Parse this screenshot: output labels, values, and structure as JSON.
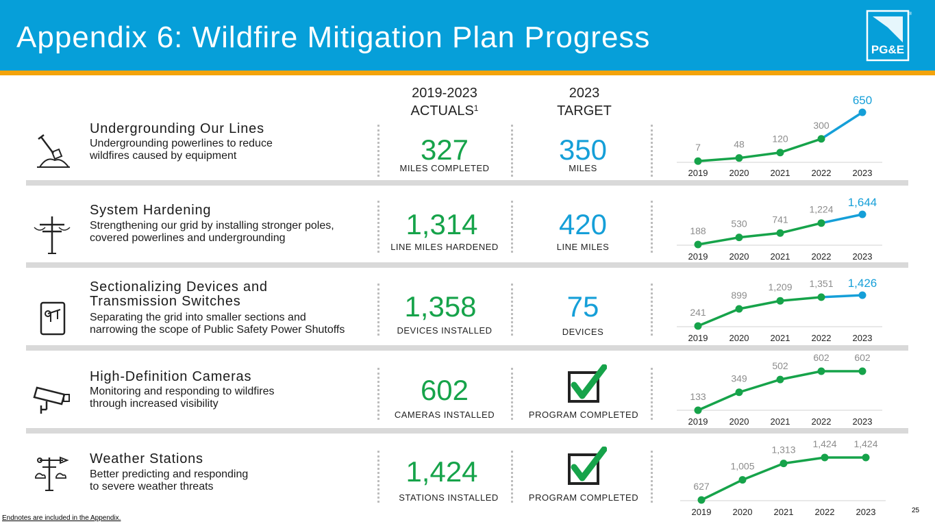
{
  "title": "Appendix 6: Wildfire Mitigation Plan Progress",
  "logo_text": "PG&E",
  "logo_mark": "®",
  "columns": {
    "actuals_line1": "2019-2023",
    "actuals_line2": "ACTUALS",
    "actuals_sup": "1",
    "target_line1": "2023",
    "target_line2": "TARGET"
  },
  "colors": {
    "header": "#069fd9",
    "accent_bar": "#f3a30b",
    "green": "#16a34a",
    "blue": "#159fd8",
    "separator": "#d9d9d9"
  },
  "rows": [
    {
      "icon": "shovel-icon",
      "title": "Undergrounding Our Lines",
      "desc1": "Undergrounding powerlines to reduce",
      "desc2": "wildfires caused by equipment",
      "actual": "327",
      "actual_unit": "MILES COMPLETED",
      "target": "350",
      "target_unit": "MILES"
    },
    {
      "icon": "utility-pole-icon",
      "title": "System Hardening",
      "desc1": "Strengthening our grid by installing stronger poles,",
      "desc2": "covered powerlines and undergrounding",
      "actual": "1,314",
      "actual_unit": "LINE MILES HARDENED",
      "target": "420",
      "target_unit": "LINE MILES"
    },
    {
      "icon": "switch-icon",
      "title1": "Sectionalizing Devices and",
      "title2": "Transmission Switches",
      "desc1": "Separating the grid into smaller sections and",
      "desc2": "narrowing the scope of Public Safety Power Shutoffs",
      "actual": "1,358",
      "actual_unit": "DEVICES INSTALLED",
      "target": "75",
      "target_unit": "DEVICES"
    },
    {
      "icon": "camera-icon",
      "title": "High-Definition Cameras",
      "desc1": "Monitoring and responding to wildfires",
      "desc2": "through increased visibility",
      "actual": "602",
      "actual_unit": "CAMERAS INSTALLED",
      "target_unit": "PROGRAM COMPLETED"
    },
    {
      "icon": "weather-station-icon",
      "title": "Weather Stations",
      "desc1": "Better predicting and responding",
      "desc2": "to severe weather threats",
      "actual": "1,424",
      "actual_unit": "STATIONS INSTALLED",
      "target_unit": "PROGRAM COMPLETED"
    }
  ],
  "chart_data": [
    {
      "type": "line",
      "title": "Undergrounding Our Lines",
      "x": [
        "2019",
        "2020",
        "2021",
        "2022",
        "2023"
      ],
      "values": [
        7,
        48,
        120,
        300,
        650
      ],
      "labels": [
        "7",
        "48",
        "120",
        "300",
        "650"
      ],
      "ylim": [
        0,
        650
      ],
      "highlight_last": true
    },
    {
      "type": "line",
      "title": "System Hardening",
      "x": [
        "2019",
        "2020",
        "2021",
        "2022",
        "2023"
      ],
      "values": [
        188,
        530,
        741,
        1224,
        1644
      ],
      "labels": [
        "188",
        "530",
        "741",
        "1,224",
        "1,644"
      ],
      "ylim": [
        188,
        1644
      ],
      "highlight_last": true
    },
    {
      "type": "line",
      "title": "Sectionalizing Devices and Transmission Switches",
      "x": [
        "2019",
        "2020",
        "2021",
        "2022",
        "2023"
      ],
      "values": [
        241,
        899,
        1209,
        1351,
        1426
      ],
      "labels": [
        "241",
        "899",
        "1,209",
        "1,351",
        "1,426"
      ],
      "ylim": [
        241,
        1426
      ],
      "highlight_last": true
    },
    {
      "type": "line",
      "title": "High-Definition Cameras",
      "x": [
        "2019",
        "2020",
        "2021",
        "2022",
        "2023"
      ],
      "values": [
        133,
        349,
        502,
        602,
        602
      ],
      "labels": [
        "133",
        "349",
        "502",
        "602",
        "602"
      ],
      "ylim": [
        133,
        602
      ],
      "highlight_last": false
    },
    {
      "type": "line",
      "title": "Weather Stations",
      "x": [
        "2019",
        "2020",
        "2021",
        "2022",
        "2023"
      ],
      "values": [
        627,
        1005,
        1313,
        1424,
        1424
      ],
      "labels": [
        "627",
        "1,005",
        "1,313",
        "1,424",
        "1,424"
      ],
      "ylim": [
        627,
        1424
      ],
      "highlight_last": false
    }
  ],
  "footnote": "Endnotes are included in the Appendix.",
  "page_number": "25"
}
